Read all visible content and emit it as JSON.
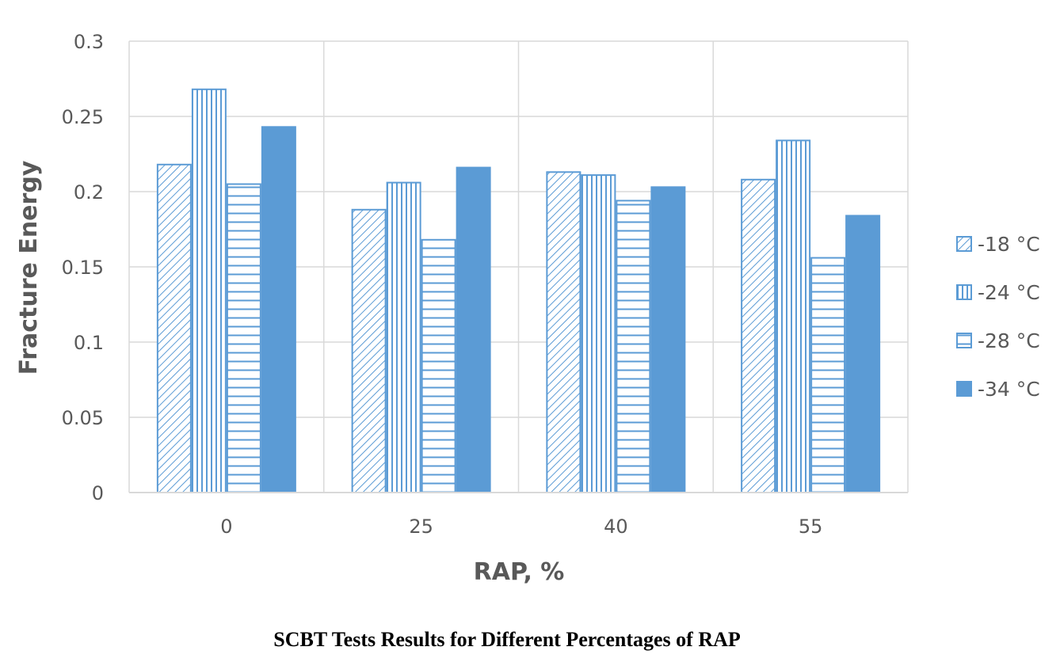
{
  "chart_data": {
    "type": "bar",
    "caption": "SCBT Tests Results for Different Percentages of RAP",
    "xlabel": "RAP, %",
    "ylabel": "Fracture Energy",
    "categories": [
      "0",
      "25",
      "40",
      "55"
    ],
    "ylim": [
      0,
      0.3
    ],
    "yticks": [
      "0",
      "0.05",
      "0.1",
      "0.15",
      "0.2",
      "0.25",
      "0.3"
    ],
    "grid": true,
    "legend_position": "right",
    "series": [
      {
        "name": "-18 °C",
        "pattern": "diagonal-hatch",
        "values": [
          0.218,
          0.188,
          0.213,
          0.208
        ]
      },
      {
        "name": "-24 °C",
        "pattern": "vertical-lines",
        "values": [
          0.268,
          0.206,
          0.211,
          0.234
        ]
      },
      {
        "name": "-28 °C",
        "pattern": "horizontal-lines",
        "values": [
          0.205,
          0.168,
          0.194,
          0.156
        ]
      },
      {
        "name": "-34 °C",
        "pattern": "solid",
        "values": [
          0.243,
          0.216,
          0.203,
          0.184
        ]
      }
    ],
    "colors": {
      "bar": "#5b9bd5",
      "grid": "#d9d9d9",
      "text": "#595959"
    }
  }
}
